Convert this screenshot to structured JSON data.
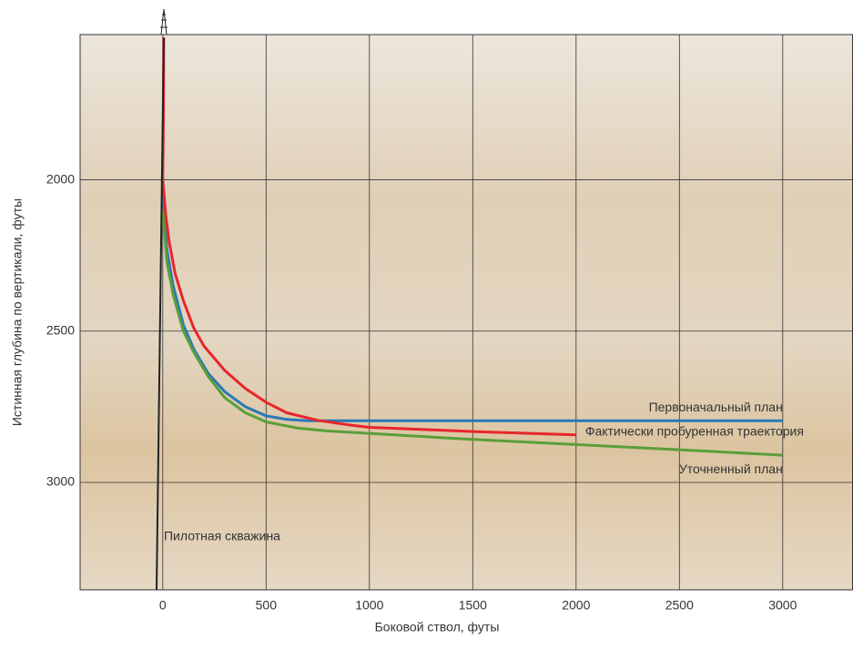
{
  "chart_data": {
    "type": "line",
    "x_label": "Боковой ствол, футы",
    "y_label": "Истинная глубина по вертикали, футы",
    "xlim": [
      -400,
      3340
    ],
    "ylim": [
      1520,
      3355
    ],
    "y_inverted": true,
    "xticks": [
      0,
      500,
      1000,
      1500,
      2000,
      2500,
      3000
    ],
    "yticks": [
      2000,
      2500,
      3000
    ],
    "grid": true,
    "series": [
      {
        "name": "Первоначальный план",
        "color": "#2a78b8",
        "x": [
          0,
          20,
          50,
          100,
          150,
          220,
          300,
          400,
          500,
          600,
          700,
          1000,
          2000,
          3000
        ],
        "values": [
          2050,
          2230,
          2350,
          2480,
          2560,
          2640,
          2700,
          2750,
          2780,
          2792,
          2796,
          2796,
          2796,
          2796
        ]
      },
      {
        "name": "Фактически пробуренная траектория",
        "color": "#e8262c",
        "x": [
          5,
          3,
          0,
          15,
          30,
          60,
          100,
          150,
          200,
          300,
          400,
          500,
          600,
          750,
          900,
          1000,
          1500,
          2000
        ],
        "values": [
          1530,
          1800,
          2000,
          2120,
          2200,
          2310,
          2400,
          2490,
          2550,
          2630,
          2690,
          2735,
          2770,
          2795,
          2810,
          2818,
          2832,
          2843
        ]
      },
      {
        "name": "Уточненный план",
        "color": "#5a9e3a",
        "x": [
          0,
          20,
          50,
          100,
          150,
          220,
          300,
          400,
          500,
          650,
          800,
          1000,
          1500,
          2000,
          2500,
          3000
        ],
        "values": [
          2100,
          2270,
          2380,
          2500,
          2570,
          2650,
          2720,
          2770,
          2800,
          2820,
          2830,
          2838,
          2858,
          2875,
          2892,
          2910
        ]
      },
      {
        "name": "Пилотная скважина",
        "color": "#222222",
        "x": [
          -30,
          5
        ],
        "values": [
          3355,
          1530
        ]
      }
    ]
  }
}
